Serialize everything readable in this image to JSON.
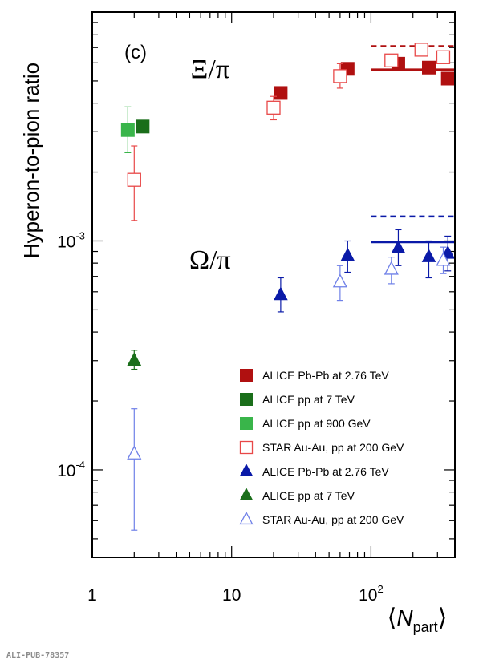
{
  "chart_data": {
    "type": "scatter",
    "panel_label": "(c)",
    "ylabel": "Hyperon-to-pion ratio",
    "xlabel": {
      "open": "⟨",
      "sym": "N",
      "sub": "part",
      "close": "⟩"
    },
    "x_scale": "log",
    "y_scale": "log",
    "xlim": [
      1,
      400
    ],
    "ylim": [
      4.15e-05,
      0.01
    ],
    "x_ticks": [
      {
        "v": 1,
        "label": "1",
        "sup": ""
      },
      {
        "v": 10,
        "label": "10",
        "sup": ""
      },
      {
        "v": 100,
        "label": "10",
        "sup": "2"
      }
    ],
    "y_ticks": [
      {
        "v": 0.0001,
        "label": "10",
        "sup": "-4"
      },
      {
        "v": 0.001,
        "label": "10",
        "sup": "-3"
      }
    ],
    "group_labels": [
      {
        "text": "Ξ/π",
        "x": 7,
        "y": 0.0056
      },
      {
        "text": "Ω/π",
        "x": 7,
        "y": 0.00082
      }
    ],
    "series": [
      {
        "name": "ALICE Pb-Pb at 2.76 TeV",
        "marker": "square",
        "filled": true,
        "color": "#b01010",
        "points": [
          [
            22.5,
            0.00443,
            0.00423,
            0.00463
          ],
          [
            68,
            0.00565,
            0.0054,
            0.00592
          ],
          [
            157,
            0.00595,
            0.0057,
            0.00622
          ],
          [
            260,
            0.00572,
            0.00545,
            0.00598
          ],
          [
            356,
            0.00512,
            0.00488,
            0.00538
          ]
        ]
      },
      {
        "name": "ALICE pp at 7 TeV",
        "marker": "square",
        "filled": true,
        "color": "#1a6e1a",
        "points": [
          [
            2.3,
            0.00316,
            0.00303,
            0.0033
          ]
        ]
      },
      {
        "name": "ALICE pp at 900 GeV",
        "marker": "square",
        "filled": true,
        "color": "#39b54a",
        "points": [
          [
            1.8,
            0.00305,
            0.00243,
            0.00385
          ]
        ]
      },
      {
        "name": "STAR Au-Au, pp at 200 GeV",
        "marker": "square",
        "filled": false,
        "color": "#e84848",
        "points": [
          [
            2,
            0.00185,
            0.00123,
            0.0026
          ],
          [
            20,
            0.00382,
            0.00338,
            0.00428
          ],
          [
            60,
            0.00525,
            0.00465,
            0.00595
          ],
          [
            140,
            0.00615,
            0.00585,
            0.00652
          ],
          [
            230,
            0.00685,
            0.00645,
            0.00715
          ],
          [
            330,
            0.00635,
            0.00598,
            0.00675
          ]
        ]
      },
      {
        "name": "ALICE Pb-Pb at 2.76 TeV",
        "marker": "triangle",
        "filled": true,
        "color": "#0a1aa8",
        "points": [
          [
            22.5,
            0.00058,
            0.00049,
            0.00069
          ],
          [
            68,
            0.00086,
            0.00073,
            0.001
          ],
          [
            157,
            0.00093,
            0.00078,
            0.00112
          ],
          [
            260,
            0.00085,
            0.00069,
            0.001
          ],
          [
            356,
            0.00088,
            0.00074,
            0.00105
          ]
        ]
      },
      {
        "name": "ALICE pp at 7 TeV",
        "marker": "triangle",
        "filled": true,
        "color": "#1a6e1a",
        "points": [
          [
            2,
            0.0003,
            0.000275,
            0.000333
          ]
        ]
      },
      {
        "name": "STAR Au-Au, pp at 200 GeV",
        "marker": "triangle",
        "filled": false,
        "color": "#6f80e8",
        "points": [
          [
            2,
            0.000117,
            5.45e-05,
            0.000185
          ],
          [
            60,
            0.00066,
            0.00055,
            0.00078
          ],
          [
            140,
            0.00075,
            0.00065,
            0.00085
          ],
          [
            330,
            0.00082,
            0.00072,
            0.00094
          ]
        ]
      }
    ],
    "ref_lines": [
      {
        "color": "#b01010",
        "dashed": false,
        "y": 0.0056,
        "x": [
          100,
          400
        ]
      },
      {
        "color": "#b01010",
        "dashed": true,
        "y": 0.0071,
        "x": [
          100,
          400
        ]
      },
      {
        "color": "#0a1aa8",
        "dashed": false,
        "y": 0.00099,
        "x": [
          100,
          400
        ]
      },
      {
        "color": "#0a1aa8",
        "dashed": true,
        "y": 0.00128,
        "x": [
          100,
          400
        ]
      }
    ],
    "legend": {
      "position": "bottom-right",
      "entries": [
        {
          "label": "ALICE Pb-Pb at 2.76 TeV",
          "marker": "square",
          "filled": true,
          "color": "#b01010"
        },
        {
          "label": "ALICE pp at 7 TeV",
          "marker": "square",
          "filled": true,
          "color": "#1a6e1a"
        },
        {
          "label": "ALICE pp at 900 GeV",
          "marker": "square",
          "filled": true,
          "color": "#39b54a"
        },
        {
          "label": "STAR Au-Au, pp at 200 GeV",
          "marker": "square",
          "filled": false,
          "color": "#e84848"
        },
        {
          "label": "ALICE Pb-Pb at 2.76 TeV",
          "marker": "triangle",
          "filled": true,
          "color": "#0a1aa8"
        },
        {
          "label": "ALICE pp at 7 TeV",
          "marker": "triangle",
          "filled": true,
          "color": "#1a6e1a"
        },
        {
          "label": "STAR Au-Au, pp at 200 GeV",
          "marker": "triangle",
          "filled": false,
          "color": "#6f80e8"
        }
      ]
    }
  },
  "footer": {
    "credit": "ALI-PUB-78357"
  }
}
